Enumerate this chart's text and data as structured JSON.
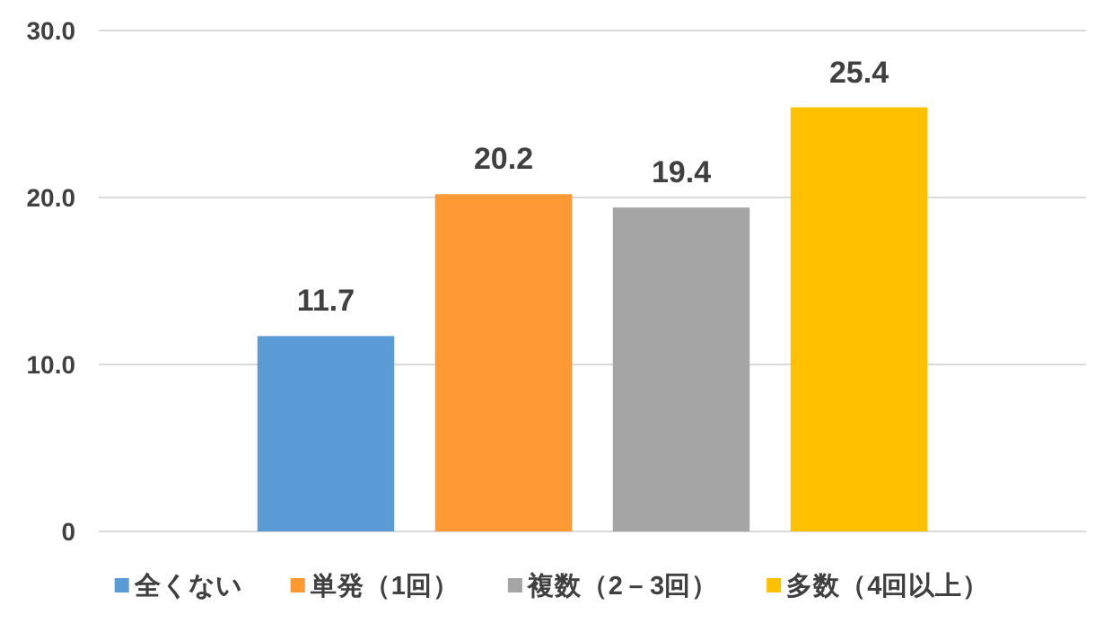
{
  "chart_data": {
    "type": "bar",
    "categories": [
      null
    ],
    "series": [
      {
        "name": "全くない",
        "color": "#5b9bd5",
        "values": [
          11.7
        ]
      },
      {
        "name": "単発（1回）",
        "color": "#ff9933",
        "values": [
          20.2
        ]
      },
      {
        "name": "複数（2－3回）",
        "color": "#a5a5a5",
        "values": [
          19.4
        ]
      },
      {
        "name": "多数（4回以上）",
        "color": "#ffc000",
        "values": [
          25.4
        ]
      }
    ],
    "ylim": [
      0,
      30
    ],
    "yticks": [
      0,
      {
        "value": 10,
        "label": "10.0"
      },
      {
        "value": 20,
        "label": "20.0"
      },
      {
        "value": 30,
        "label": "30.0"
      }
    ],
    "grid": "y",
    "legend": "bottom",
    "data_labels": true
  }
}
